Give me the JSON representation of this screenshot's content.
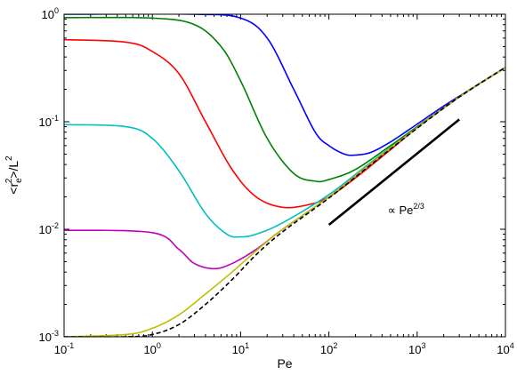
{
  "chart_data": {
    "type": "line",
    "xscale": "log",
    "yscale": "log",
    "xlim": [
      0.1,
      10000
    ],
    "ylim": [
      0.001,
      1
    ],
    "grid": false,
    "xlabel": "Pe",
    "ylabel": {
      "prefix": "<r",
      "sub": "e",
      "sup": "2",
      "mid": ">/L",
      "sup2": "2"
    },
    "x_ticks": [
      {
        "base": "10",
        "exp": "-1",
        "value": 0.1
      },
      {
        "base": "10",
        "exp": "0",
        "value": 1
      },
      {
        "base": "10",
        "exp": "1",
        "value": 10
      },
      {
        "base": "10",
        "exp": "2",
        "value": 100
      },
      {
        "base": "10",
        "exp": "3",
        "value": 1000
      },
      {
        "base": "10",
        "exp": "4",
        "value": 10000
      }
    ],
    "y_ticks": [
      {
        "base": "10",
        "exp": "-3",
        "value": 0.001
      },
      {
        "base": "10",
        "exp": "-2",
        "value": 0.01
      },
      {
        "base": "10",
        "exp": "-1",
        "value": 0.1
      },
      {
        "base": "10",
        "exp": "0",
        "value": 1
      }
    ],
    "series": [
      {
        "color": "#0000ff",
        "style": "solid",
        "points": [
          [
            0.1,
            1.0
          ],
          [
            3,
            1.0
          ],
          [
            10,
            0.92
          ],
          [
            20,
            0.6
          ],
          [
            40,
            0.2
          ],
          [
            70,
            0.08
          ],
          [
            100,
            0.06
          ],
          [
            150,
            0.05
          ],
          [
            200,
            0.049
          ],
          [
            300,
            0.052
          ],
          [
            500,
            0.065
          ],
          [
            1000,
            0.095
          ],
          [
            2000,
            0.14
          ],
          [
            4000,
            0.2
          ],
          [
            10000,
            0.32
          ]
        ]
      },
      {
        "color": "#008000",
        "style": "solid",
        "points": [
          [
            0.1,
            0.93
          ],
          [
            1,
            0.92
          ],
          [
            3,
            0.8
          ],
          [
            6,
            0.5
          ],
          [
            10,
            0.24
          ],
          [
            20,
            0.07
          ],
          [
            40,
            0.033
          ],
          [
            70,
            0.028
          ],
          [
            100,
            0.029
          ],
          [
            200,
            0.036
          ],
          [
            500,
            0.06
          ],
          [
            1000,
            0.09
          ],
          [
            2000,
            0.135
          ],
          [
            4000,
            0.2
          ],
          [
            10000,
            0.32
          ]
        ]
      },
      {
        "color": "#ff0000",
        "style": "solid",
        "points": [
          [
            0.1,
            0.58
          ],
          [
            0.5,
            0.55
          ],
          [
            1,
            0.45
          ],
          [
            2,
            0.28
          ],
          [
            4,
            0.1
          ],
          [
            8,
            0.036
          ],
          [
            15,
            0.02
          ],
          [
            30,
            0.016
          ],
          [
            60,
            0.017
          ],
          [
            100,
            0.02
          ],
          [
            200,
            0.03
          ],
          [
            500,
            0.055
          ],
          [
            1000,
            0.088
          ],
          [
            3000,
            0.17
          ],
          [
            10000,
            0.32
          ]
        ]
      },
      {
        "color": "#00bfbf",
        "style": "solid",
        "points": [
          [
            0.1,
            0.094
          ],
          [
            0.5,
            0.09
          ],
          [
            1,
            0.07
          ],
          [
            2,
            0.035
          ],
          [
            4,
            0.014
          ],
          [
            7,
            0.009
          ],
          [
            10,
            0.0085
          ],
          [
            15,
            0.009
          ],
          [
            30,
            0.0115
          ],
          [
            100,
            0.021
          ],
          [
            300,
            0.042
          ],
          [
            1000,
            0.088
          ],
          [
            3000,
            0.17
          ],
          [
            10000,
            0.32
          ]
        ]
      },
      {
        "color": "#bf00bf",
        "style": "solid",
        "points": [
          [
            0.1,
            0.0098
          ],
          [
            1,
            0.0093
          ],
          [
            2,
            0.0065
          ],
          [
            3,
            0.0048
          ],
          [
            5,
            0.0043
          ],
          [
            8,
            0.0048
          ],
          [
            15,
            0.0065
          ],
          [
            30,
            0.01
          ],
          [
            100,
            0.02
          ],
          [
            300,
            0.041
          ],
          [
            1000,
            0.088
          ],
          [
            3000,
            0.17
          ],
          [
            10000,
            0.32
          ]
        ]
      },
      {
        "color": "#bfbf00",
        "style": "solid",
        "points": [
          [
            0.1,
            0.001
          ],
          [
            0.5,
            0.00105
          ],
          [
            1,
            0.0012
          ],
          [
            2,
            0.0016
          ],
          [
            4,
            0.0025
          ],
          [
            8,
            0.004
          ],
          [
            15,
            0.0063
          ],
          [
            30,
            0.01
          ],
          [
            100,
            0.02
          ],
          [
            300,
            0.041
          ],
          [
            1000,
            0.088
          ],
          [
            3000,
            0.17
          ],
          [
            10000,
            0.32
          ]
        ]
      },
      {
        "color": "#000000",
        "style": "dashed",
        "points": [
          [
            0.1,
            0.001
          ],
          [
            0.5,
            0.001
          ],
          [
            1,
            0.00105
          ],
          [
            2,
            0.0013
          ],
          [
            4,
            0.002
          ],
          [
            8,
            0.0034
          ],
          [
            15,
            0.0058
          ],
          [
            30,
            0.0095
          ],
          [
            100,
            0.0195
          ],
          [
            300,
            0.04
          ],
          [
            1000,
            0.087
          ],
          [
            3000,
            0.17
          ],
          [
            10000,
            0.32
          ]
        ]
      }
    ],
    "reference_line": {
      "color": "#000000",
      "x": [
        100,
        3000
      ],
      "y": [
        0.011,
        0.105
      ],
      "label_prefix": "∝ Pe",
      "label_sup": "2/3"
    }
  }
}
